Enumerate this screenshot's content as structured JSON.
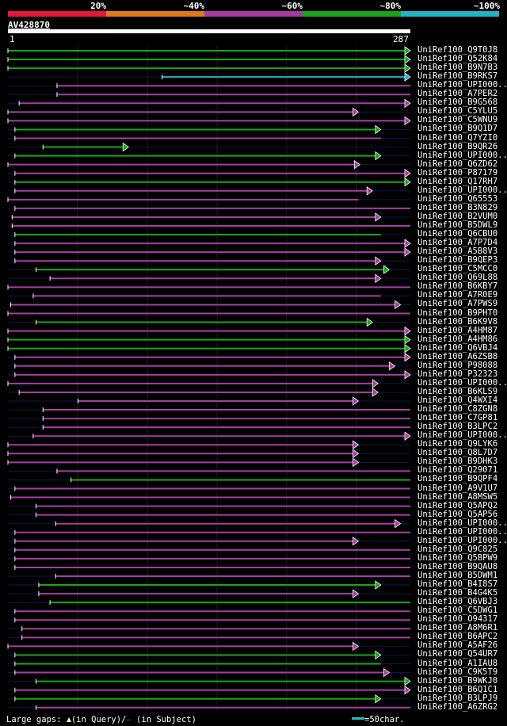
{
  "scale": {
    "labels": [
      "20%",
      "~40%",
      "~60%",
      "~80%",
      "~100%"
    ],
    "colors": [
      "#e8173a",
      "#e07820",
      "#a53aa0",
      "#1aa21a",
      "#22b4c4"
    ]
  },
  "query": {
    "title": "AV428870",
    "start_label": "1",
    "end_label": "287",
    "length": 287
  },
  "hits": [
    {
      "name": "UniRef100_Q9T0J8",
      "color": "green",
      "start": 0,
      "end": 287,
      "arrow": true
    },
    {
      "name": "UniRef100_Q52K84",
      "color": "green",
      "start": 0,
      "end": 287,
      "arrow": true
    },
    {
      "name": "UniRef100_B9N7B3",
      "color": "green",
      "start": 0,
      "end": 287,
      "arrow": true
    },
    {
      "name": "UniRef100_B9RKS7",
      "color": "cyan",
      "start": 110,
      "end": 287,
      "arrow": true
    },
    {
      "name": "UniRef100_UPI000..",
      "color": "purple",
      "start": 35,
      "end": 287,
      "arrow": false
    },
    {
      "name": "UniRef100_A7PER2",
      "color": "purple",
      "start": 35,
      "end": 287,
      "arrow": false
    },
    {
      "name": "UniRef100_B9G568",
      "color": "purple",
      "start": 8,
      "end": 287,
      "arrow": true
    },
    {
      "name": "UniRef100_C5YLU5",
      "color": "purple",
      "start": 0,
      "end": 250,
      "arrow": true
    },
    {
      "name": "UniRef100_C5WNU9",
      "color": "purple",
      "start": 0,
      "end": 287,
      "arrow": true
    },
    {
      "name": "UniRef100_B9Q1D7",
      "color": "green",
      "start": 5,
      "end": 266,
      "arrow": true
    },
    {
      "name": "UniRef100_Q7YZI0",
      "color": "purple",
      "start": 5,
      "end": 266,
      "arrow": false
    },
    {
      "name": "UniRef100_B9QR26",
      "color": "green",
      "start": 25,
      "end": 86,
      "arrow": true
    },
    {
      "name": "UniRef100_UPI000..",
      "color": "green",
      "start": 5,
      "end": 266,
      "arrow": true
    },
    {
      "name": "UniRef100_Q6ZD62",
      "color": "purple",
      "start": 0,
      "end": 251,
      "arrow": true
    },
    {
      "name": "UniRef100_P87179",
      "color": "purple",
      "start": 5,
      "end": 287,
      "arrow": true
    },
    {
      "name": "UniRef100_Q17RH7",
      "color": "green",
      "start": 5,
      "end": 287,
      "arrow": true
    },
    {
      "name": "UniRef100_UPI000..",
      "color": "purple",
      "start": 5,
      "end": 260,
      "arrow": true
    },
    {
      "name": "UniRef100_Q65553",
      "color": "purple",
      "start": 0,
      "end": 250,
      "arrow": false
    },
    {
      "name": "UniRef100_B3N829",
      "color": "purple",
      "start": 5,
      "end": 287,
      "arrow": false
    },
    {
      "name": "UniRef100_B2VUM0",
      "color": "purple",
      "start": 3,
      "end": 266,
      "arrow": true
    },
    {
      "name": "UniRef100_B5DWL9",
      "color": "purple",
      "start": 3,
      "end": 287,
      "arrow": false
    },
    {
      "name": "UniRef100_Q6CBU0",
      "color": "green",
      "start": 5,
      "end": 266,
      "arrow": false
    },
    {
      "name": "UniRef100_A7P7D4",
      "color": "purple",
      "start": 5,
      "end": 287,
      "arrow": true
    },
    {
      "name": "UniRef100_A5B8V3",
      "color": "purple",
      "start": 5,
      "end": 287,
      "arrow": true
    },
    {
      "name": "UniRef100_B9QEP3",
      "color": "purple",
      "start": 5,
      "end": 266,
      "arrow": true
    },
    {
      "name": "UniRef100_C5MCC0",
      "color": "green",
      "start": 20,
      "end": 272,
      "arrow": true
    },
    {
      "name": "UniRef100_Q69L88",
      "color": "purple",
      "start": 30,
      "end": 266,
      "arrow": true
    },
    {
      "name": "UniRef100_B6KBY7",
      "color": "purple",
      "start": 0,
      "end": 287,
      "arrow": false
    },
    {
      "name": "UniRef100_A7R0E9",
      "color": "purple",
      "start": 18,
      "end": 266,
      "arrow": false
    },
    {
      "name": "UniRef100_A7PWS9",
      "color": "purple",
      "start": 2,
      "end": 280,
      "arrow": true
    },
    {
      "name": "UniRef100_B9PHT0",
      "color": "purple",
      "start": 0,
      "end": 287,
      "arrow": false
    },
    {
      "name": "UniRef100_B6K9V8",
      "color": "green",
      "start": 20,
      "end": 260,
      "arrow": true
    },
    {
      "name": "UniRef100_A4HM87",
      "color": "purple",
      "start": 0,
      "end": 287,
      "arrow": true
    },
    {
      "name": "UniRef100_A4HM86",
      "color": "green",
      "start": 0,
      "end": 287,
      "arrow": true
    },
    {
      "name": "UniRef100_Q6VBJ4",
      "color": "green",
      "start": 0,
      "end": 287,
      "arrow": true
    },
    {
      "name": "UniRef100_A6ZSB8",
      "color": "purple",
      "start": 5,
      "end": 287,
      "arrow": true
    },
    {
      "name": "UniRef100_P98088",
      "color": "purple",
      "start": 5,
      "end": 276,
      "arrow": true
    },
    {
      "name": "UniRef100_P32323",
      "color": "purple",
      "start": 5,
      "end": 287,
      "arrow": true
    },
    {
      "name": "UniRef100_UPI000..",
      "color": "purple",
      "start": 0,
      "end": 264,
      "arrow": true
    },
    {
      "name": "UniRef100_B6KLS9",
      "color": "purple",
      "start": 8,
      "end": 264,
      "arrow": true
    },
    {
      "name": "UniRef100_Q4WXI4",
      "color": "purple",
      "start": 50,
      "end": 250,
      "arrow": true
    },
    {
      "name": "UniRef100_C8ZGN8",
      "color": "purple",
      "start": 25,
      "end": 287,
      "arrow": false
    },
    {
      "name": "UniRef100_C7GP81",
      "color": "purple",
      "start": 25,
      "end": 287,
      "arrow": false
    },
    {
      "name": "UniRef100_B3LPC2",
      "color": "purple",
      "start": 25,
      "end": 287,
      "arrow": false
    },
    {
      "name": "UniRef100_UPI000..",
      "color": "purple",
      "start": 18,
      "end": 287,
      "arrow": true
    },
    {
      "name": "UniRef100_Q9LYK6",
      "color": "purple",
      "start": 0,
      "end": 250,
      "arrow": true
    },
    {
      "name": "UniRef100_Q8L7D7",
      "color": "purple",
      "start": 0,
      "end": 250,
      "arrow": true
    },
    {
      "name": "UniRef100_B9DHK3",
      "color": "purple",
      "start": 0,
      "end": 250,
      "arrow": true
    },
    {
      "name": "UniRef100_Q29071",
      "color": "purple",
      "start": 35,
      "end": 287,
      "arrow": false
    },
    {
      "name": "UniRef100_B9QPF4",
      "color": "green",
      "start": 45,
      "end": 287,
      "arrow": false
    },
    {
      "name": "UniRef100_A9V1U7",
      "color": "purple",
      "start": 5,
      "end": 287,
      "arrow": false
    },
    {
      "name": "UniRef100_A8MSW5",
      "color": "purple",
      "start": 2,
      "end": 287,
      "arrow": false
    },
    {
      "name": "UniRef100_Q5APQ2",
      "color": "purple",
      "start": 20,
      "end": 287,
      "arrow": false
    },
    {
      "name": "UniRef100_Q5AP56",
      "color": "purple",
      "start": 20,
      "end": 287,
      "arrow": false
    },
    {
      "name": "UniRef100_UPI000..",
      "color": "purple",
      "start": 34,
      "end": 280,
      "arrow": true
    },
    {
      "name": "UniRef100_UPI000..",
      "color": "purple",
      "start": 5,
      "end": 287,
      "arrow": false
    },
    {
      "name": "UniRef100_UPI000..",
      "color": "purple",
      "start": 5,
      "end": 250,
      "arrow": true
    },
    {
      "name": "UniRef100_Q9C825",
      "color": "purple",
      "start": 5,
      "end": 287,
      "arrow": false
    },
    {
      "name": "UniRef100_Q5BPW9",
      "color": "purple",
      "start": 5,
      "end": 287,
      "arrow": false
    },
    {
      "name": "UniRef100_B9QAU8",
      "color": "purple",
      "start": 5,
      "end": 287,
      "arrow": false
    },
    {
      "name": "UniRef100_B5DWM1",
      "color": "purple",
      "start": 34,
      "end": 287,
      "arrow": false
    },
    {
      "name": "UniRef100_B4I8S7",
      "color": "green",
      "start": 22,
      "end": 266,
      "arrow": true
    },
    {
      "name": "UniRef100_B4G4K5",
      "color": "purple",
      "start": 22,
      "end": 250,
      "arrow": true
    },
    {
      "name": "UniRef100_Q6VBJ3",
      "color": "green",
      "start": 30,
      "end": 287,
      "arrow": false
    },
    {
      "name": "UniRef100_C5DWG1",
      "color": "purple",
      "start": 5,
      "end": 287,
      "arrow": false
    },
    {
      "name": "UniRef100_O94317",
      "color": "purple",
      "start": 5,
      "end": 287,
      "arrow": false
    },
    {
      "name": "UniRef100_A8M6R1",
      "color": "purple",
      "start": 10,
      "end": 287,
      "arrow": false
    },
    {
      "name": "UniRef100_B6APC2",
      "color": "purple",
      "start": 10,
      "end": 287,
      "arrow": false
    },
    {
      "name": "UniRef100_A5AF26",
      "color": "purple",
      "start": 0,
      "end": 250,
      "arrow": true
    },
    {
      "name": "UniRef100_Q54UR7",
      "color": "green",
      "start": 5,
      "end": 266,
      "arrow": true
    },
    {
      "name": "UniRef100_A1IAU8",
      "color": "green",
      "start": 5,
      "end": 266,
      "arrow": false
    },
    {
      "name": "UniRef100_C9K5T9",
      "color": "purple",
      "start": 5,
      "end": 272,
      "arrow": true
    },
    {
      "name": "UniRef100_B9WKJ0",
      "color": "green",
      "start": 20,
      "end": 287,
      "arrow": true
    },
    {
      "name": "UniRef100_B6Q1C1",
      "color": "purple",
      "start": 5,
      "end": 287,
      "arrow": true
    },
    {
      "name": "UniRef100_B3LPJ9",
      "color": "green",
      "start": 5,
      "end": 266,
      "arrow": true
    },
    {
      "name": "UniRef100_A6ZRG2",
      "color": "purple",
      "start": 20,
      "end": 287,
      "arrow": false
    }
  ],
  "legend": {
    "gaps_text_a": "Large gaps: ",
    "gaps_text_b": "(in Query)/",
    "gaps_dash": "–",
    "gaps_text_c": " (in Subject)",
    "scale_text": "=50char."
  }
}
